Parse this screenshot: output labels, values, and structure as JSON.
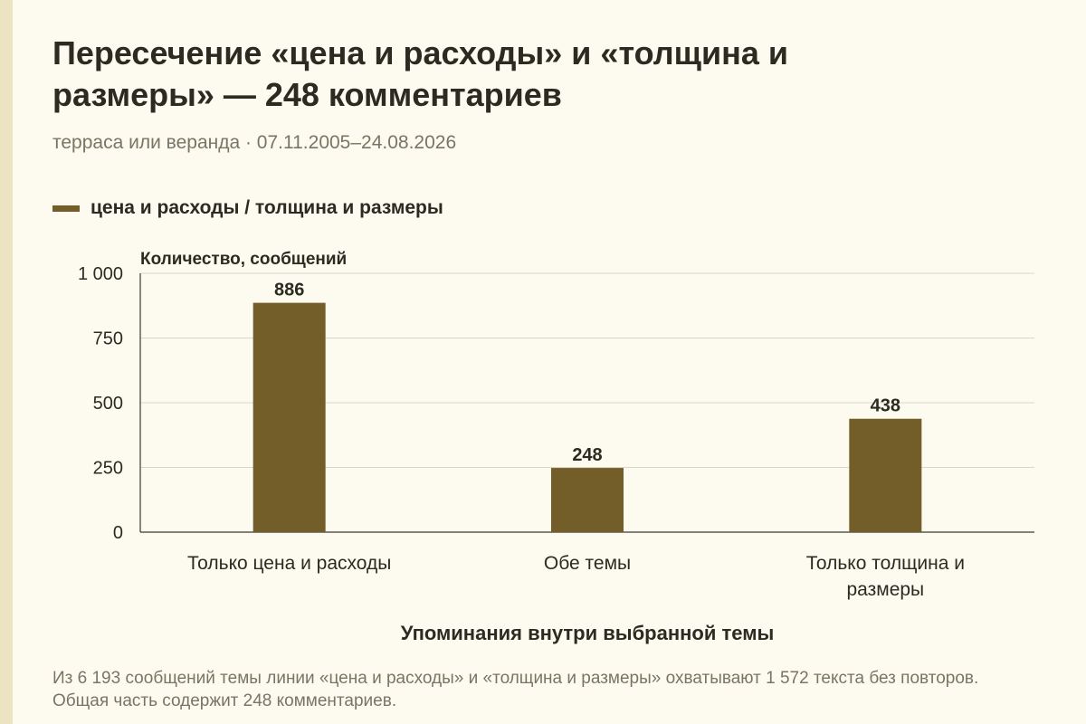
{
  "title": "Пересечение «цена и расходы» и «толщина и размеры» — 248 комментариев",
  "subtitle": "терраса или веранда · 07.11.2005–24.08.2026",
  "legend": {
    "label": "цена и расходы / толщина и размеры"
  },
  "footnote": "Из 6 193 сообщений темы линии «цена и расходы» и «толщина и размеры» охватывают 1 572 текста без повторов. Общая часть содержит 248 комментариев.",
  "colors": {
    "bar": "#735d29",
    "grid": "#d9d6c8",
    "axis": "#3a3a30",
    "background": "#fdfbf0"
  },
  "chart_data": {
    "type": "bar",
    "categories": [
      [
        "Только цена и расходы"
      ],
      [
        "Обе темы"
      ],
      [
        "Только толщина и",
        "размеры"
      ]
    ],
    "series": [
      {
        "name": "цена и расходы / толщина и размеры",
        "values": [
          886,
          248,
          438
        ]
      }
    ],
    "data_labels": [
      "886",
      "248",
      "438"
    ],
    "ylabel": "Количество, сообщений",
    "xlabel": "Упоминания внутри выбранной темы",
    "ylim": [
      0,
      1000
    ],
    "yticks": [
      0,
      250,
      500,
      750,
      1000
    ],
    "ytick_labels": [
      "0",
      "250",
      "500",
      "750",
      "1 000"
    ],
    "grid": true,
    "legend_position": "top-left"
  }
}
